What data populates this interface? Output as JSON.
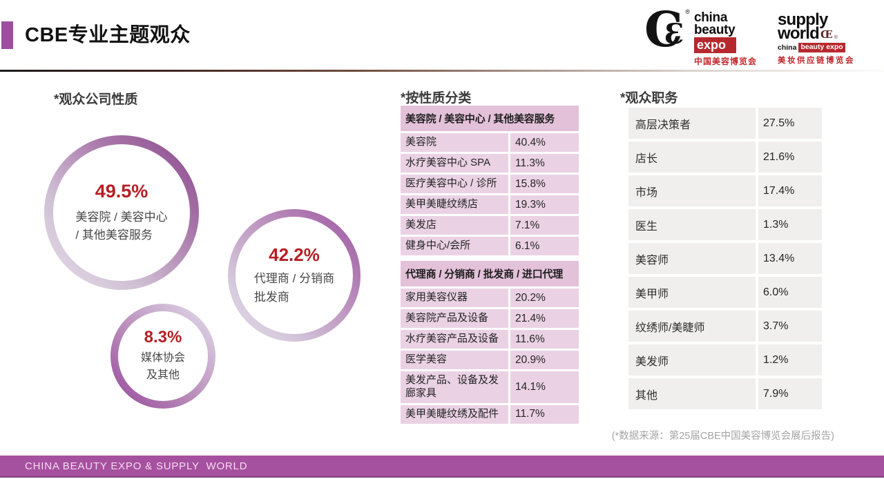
{
  "slide": {
    "title": "CBE专业主题观众"
  },
  "logos": {
    "cbe": {
      "monogram_c": "C",
      "monogram_e": "Ɛ",
      "registered": "®",
      "word1": "china",
      "word2": "beauty",
      "word3": "expo",
      "chinese": "中国美容博览会"
    },
    "supply_world": {
      "word1": "supply",
      "word2": "world",
      "mark": "Œ",
      "registered": "®",
      "sub_plain": "china",
      "sub_boxed": "beauty expo",
      "chinese": "美妆供应链博览会"
    }
  },
  "company_nature": {
    "heading": "*观众公司性质",
    "bubbles": [
      {
        "value": "49.5%",
        "line1": "美容院 / 美容中心",
        "line2": "/ 其他美容服务"
      },
      {
        "value": "42.2%",
        "line1": "代理商 / 分销商",
        "line2": "批发商"
      },
      {
        "value": "8.3%",
        "line1": "媒体协会",
        "line2": "及其他"
      }
    ]
  },
  "by_nature": {
    "heading": "*按性质分类",
    "table1": {
      "header": "美容院 / 美容中心 / 其他美容服务",
      "rows": [
        [
          "美容院",
          "40.4%"
        ],
        [
          "水疗美容中心 SPA",
          "11.3%"
        ],
        [
          "医疗美容中心 / 诊所",
          "15.8%"
        ],
        [
          "美甲美睫纹绣店",
          "19.3%"
        ],
        [
          "美发店",
          "7.1%"
        ],
        [
          "健身中心/会所",
          "6.1%"
        ]
      ]
    },
    "table2": {
      "header": "代理商 / 分销商 / 批发商 / 进口代理",
      "rows": [
        [
          "家用美容仪器",
          "20.2%"
        ],
        [
          "美容院产品及设备",
          "21.4%"
        ],
        [
          "水疗美容产品及设备",
          "11.6%"
        ],
        [
          "医学美容",
          "20.9%"
        ],
        [
          "美发产品、设备及发廊家具",
          "14.1%"
        ],
        [
          "美甲美睫纹绣及配件",
          "11.7%"
        ]
      ]
    }
  },
  "job_titles": {
    "heading": "*观众职务",
    "rows": [
      [
        "高层决策者",
        "27.5%"
      ],
      [
        "店长",
        "21.6%"
      ],
      [
        "市场",
        "17.4%"
      ],
      [
        "医生",
        "1.3%"
      ],
      [
        "美容师",
        "13.4%"
      ],
      [
        "美甲师",
        "6.0%"
      ],
      [
        "纹绣师/美睫师",
        "3.7%"
      ],
      [
        "美发师",
        "1.2%"
      ],
      [
        "其他",
        "7.9%"
      ]
    ]
  },
  "footer": {
    "source_note": "(*数据来源：第25届CBE中国美容博览会展后报告)",
    "bar_text": "CHINA BEAUTY EXPO & SUPPLY  WORLD"
  },
  "colors": {
    "accent_purple": "#9c4f9e",
    "bottom_bar": "#a6519f",
    "pink_table_header": "#e3c1d9",
    "pink_table_row": "#ead2e4",
    "gray_table_row": "#f0efee",
    "percent_red": "#b51f24",
    "logo_red": "#b5292e"
  },
  "chart_data": [
    {
      "type": "pie",
      "title": "观众公司性质",
      "categories": [
        "美容院 / 美容中心 / 其他美容服务",
        "代理商 / 分销商 批发商",
        "媒体协会及其他"
      ],
      "values": [
        49.5,
        42.2,
        8.3
      ],
      "unit": "%"
    },
    {
      "type": "table",
      "title": "美容院 / 美容中心 / 其他美容服务",
      "categories": [
        "美容院",
        "水疗美容中心 SPA",
        "医疗美容中心 / 诊所",
        "美甲美睫纹绣店",
        "美发店",
        "健身中心/会所"
      ],
      "values": [
        40.4,
        11.3,
        15.8,
        19.3,
        7.1,
        6.1
      ],
      "unit": "%"
    },
    {
      "type": "table",
      "title": "代理商 / 分销商 / 批发商 / 进口代理",
      "categories": [
        "家用美容仪器",
        "美容院产品及设备",
        "水疗美容产品及设备",
        "医学美容",
        "美发产品、设备及发廊家具",
        "美甲美睫纹绣及配件"
      ],
      "values": [
        20.2,
        21.4,
        11.6,
        20.9,
        14.1,
        11.7
      ],
      "unit": "%"
    },
    {
      "type": "table",
      "title": "观众职务",
      "categories": [
        "高层决策者",
        "店长",
        "市场",
        "医生",
        "美容师",
        "美甲师",
        "纹绣师/美睫师",
        "美发师",
        "其他"
      ],
      "values": [
        27.5,
        21.6,
        17.4,
        1.3,
        13.4,
        6.0,
        3.7,
        1.2,
        7.9
      ],
      "unit": "%"
    }
  ]
}
